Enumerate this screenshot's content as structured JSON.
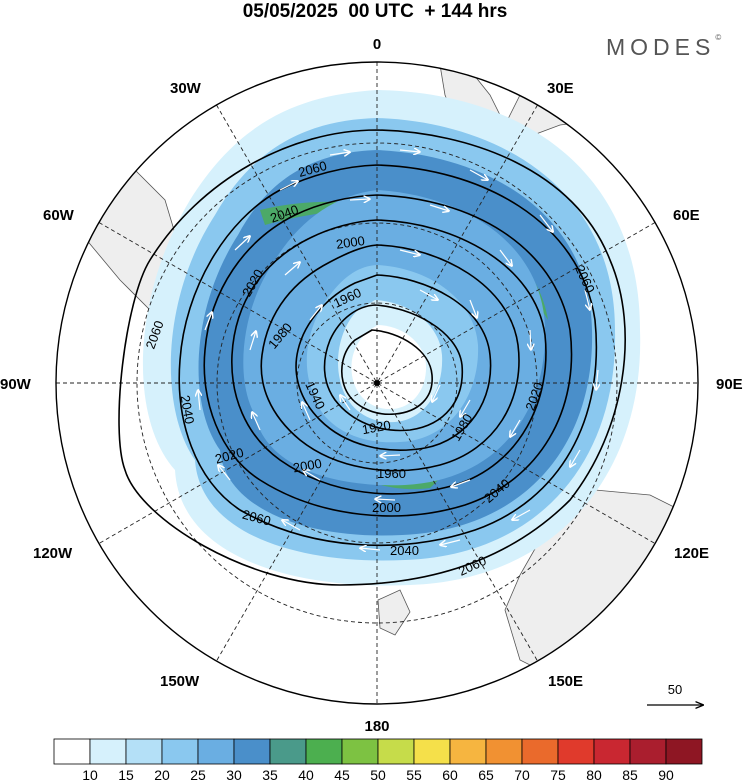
{
  "header": {
    "title": "05/05/2025  00 UTC  + 144 hrs",
    "brand": "MODES",
    "brand_mark": "©"
  },
  "map": {
    "projection": "polar stereographic (south pole)",
    "longitude_labels": {
      "top": "0",
      "top_right": "30E",
      "upper_right": "60E",
      "right": "90E",
      "lower_right": "120E",
      "bottom_right": "150E",
      "bottom": "180",
      "bottom_left": "150W",
      "lower_left": "120W",
      "left": "90W",
      "upper_left": "60W",
      "top_left": "30W"
    },
    "contour_labels": [
      "1920",
      "1940",
      "1960",
      "1980",
      "2000",
      "2020",
      "2040",
      "2060"
    ],
    "colors": {
      "land": "#eeeeee",
      "contour": "#000000",
      "vector": "#ffffff"
    },
    "reference_vector": "50"
  },
  "colorbar": {
    "ticks": [
      "10",
      "15",
      "20",
      "25",
      "30",
      "35",
      "40",
      "45",
      "50",
      "55",
      "60",
      "65",
      "70",
      "75",
      "80",
      "85",
      "90"
    ],
    "colors": [
      "#ffffff",
      "#d6f1fc",
      "#b4e0f7",
      "#8ac8ef",
      "#6aaee2",
      "#4a8fca",
      "#4a9a8a",
      "#4caf4f",
      "#7dc242",
      "#c6dc4a",
      "#f5e04a",
      "#f6b540",
      "#f19132",
      "#ea6a2c",
      "#e03a2c",
      "#c92731",
      "#aa1e2e",
      "#8e1623"
    ]
  }
}
